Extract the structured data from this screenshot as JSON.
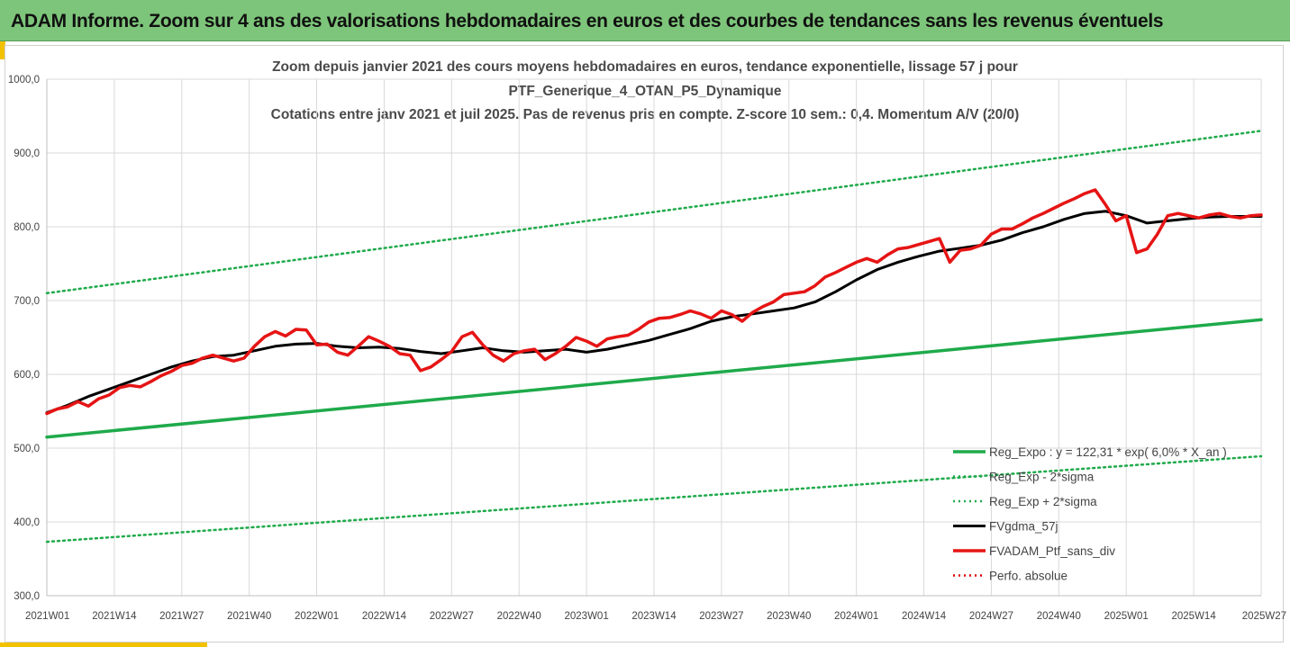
{
  "banner": {
    "title": "ADAM Informe. Zoom sur 4 ans des valorisations hebdomadaires en euros et des courbes de tendances sans les revenus éventuels"
  },
  "colors": {
    "banner_bg": "#7dc57a",
    "regression": "#1faa4b",
    "sigma": "#1faa4b",
    "smoothed": "#000000",
    "absolute": "#e00000",
    "portfolio": "#e61414",
    "accent": "#f2c200"
  },
  "chart_data": {
    "type": "line",
    "title_lines": [
      "Zoom depuis janvier 2021 des cours moyens hebdomadaires  en euros, tendance exponentielle, lissage 57 j pour",
      "PTF_Generique_4_OTAN_P5_Dynamique",
      "Cotations entre janv 2021 et juil 2025. Pas de revenus pris en compte. Z-score 10 sem.: 0,4. Momentum A/V (20/0)"
    ],
    "ylim": [
      300,
      1000
    ],
    "y_ticks": [
      "300,0",
      "400,0",
      "500,0",
      "600,0",
      "700,0",
      "800,0",
      "900,0",
      "1000,0"
    ],
    "x_ticks": [
      "2021W01",
      "2021W14",
      "2021W27",
      "2021W40",
      "2022W01",
      "2022W14",
      "2022W27",
      "2022W40",
      "2023W01",
      "2023W14",
      "2023W27",
      "2023W40",
      "2024W01",
      "2024W14",
      "2024W27",
      "2024W40",
      "2025W01",
      "2025W14",
      "2025W27"
    ],
    "grid": "horizontal and vertical",
    "legend_position": "bottom-right",
    "series": [
      {
        "name": "Reg_Expo : y = 122,31 * exp( 6,0% *  X_an )",
        "style": "solid-green",
        "x": [
          0,
          234
        ],
        "y": [
          515,
          674
        ]
      },
      {
        "name": "Reg_Exp - 2*sigma",
        "style": "dotted-green",
        "x": [
          0,
          234
        ],
        "y": [
          373,
          489
        ]
      },
      {
        "name": "Reg_Exp + 2*sigma",
        "style": "dotted-green",
        "x": [
          0,
          234
        ],
        "y": [
          710,
          930
        ]
      },
      {
        "name": "FVgdma_57j",
        "style": "solid-black",
        "x": [
          0,
          4,
          8,
          12,
          16,
          20,
          24,
          28,
          32,
          36,
          40,
          44,
          48,
          52,
          56,
          60,
          64,
          68,
          72,
          76,
          80,
          84,
          88,
          92,
          96,
          100,
          104,
          108,
          112,
          116,
          120,
          124,
          128,
          132,
          136,
          140,
          144,
          148,
          152,
          156,
          160,
          164,
          168,
          172,
          176,
          180,
          184,
          188,
          192,
          196,
          200,
          204,
          208,
          212,
          216,
          220,
          224,
          228,
          234
        ],
        "y": [
          548,
          558,
          570,
          580,
          590,
          600,
          610,
          618,
          624,
          626,
          632,
          638,
          641,
          642,
          638,
          636,
          637,
          635,
          631,
          628,
          632,
          636,
          632,
          630,
          632,
          634,
          630,
          634,
          640,
          646,
          654,
          662,
          672,
          678,
          682,
          686,
          690,
          698,
          712,
          728,
          742,
          752,
          760,
          767,
          771,
          775,
          782,
          792,
          800,
          810,
          818,
          821,
          815,
          805,
          808,
          811,
          813,
          814,
          814
        ]
      },
      {
        "name": "FVADAM_Ptf_sans_div",
        "style": "thick-red",
        "x": [
          0,
          2,
          4,
          6,
          8,
          10,
          12,
          14,
          16,
          18,
          20,
          22,
          24,
          26,
          28,
          30,
          32,
          34,
          36,
          38,
          40,
          42,
          44,
          46,
          48,
          50,
          52,
          54,
          56,
          58,
          60,
          62,
          64,
          66,
          68,
          70,
          72,
          74,
          76,
          78,
          80,
          82,
          84,
          86,
          88,
          90,
          92,
          94,
          96,
          98,
          100,
          102,
          104,
          106,
          108,
          110,
          112,
          114,
          116,
          118,
          120,
          122,
          124,
          126,
          128,
          130,
          132,
          134,
          136,
          138,
          140,
          142,
          144,
          146,
          148,
          150,
          152,
          154,
          156,
          158,
          160,
          162,
          164,
          166,
          168,
          170,
          172,
          174,
          176,
          178,
          180,
          182,
          184,
          186,
          188,
          190,
          192,
          194,
          196,
          198,
          200,
          202,
          204,
          206,
          208,
          210,
          212,
          214,
          216,
          218,
          220,
          222,
          224,
          226,
          228,
          230,
          232,
          234
        ],
        "y": [
          547,
          553,
          556,
          563,
          557,
          567,
          572,
          582,
          585,
          583,
          590,
          598,
          604,
          612,
          615,
          622,
          626,
          622,
          618,
          622,
          638,
          651,
          658,
          652,
          661,
          660,
          640,
          641,
          630,
          626,
          638,
          651,
          645,
          638,
          628,
          626,
          605,
          610,
          620,
          631,
          651,
          657,
          640,
          626,
          618,
          628,
          632,
          634,
          620,
          628,
          638,
          650,
          645,
          638,
          648,
          651,
          653,
          661,
          671,
          676,
          677,
          681,
          686,
          682,
          676,
          686,
          681,
          672,
          684,
          692,
          698,
          708,
          710,
          712,
          720,
          732,
          738,
          745,
          752,
          757,
          752,
          762,
          770,
          772,
          776,
          780,
          784,
          752,
          768,
          770,
          775,
          790,
          797,
          797,
          804,
          812,
          818,
          825,
          832,
          838,
          845,
          850,
          830,
          808,
          815,
          765,
          770,
          790,
          815,
          818,
          815,
          812,
          816,
          818,
          814,
          812,
          815,
          816
        ]
      },
      {
        "name": "Perfo. absolue",
        "style": "dotted-red",
        "x": [],
        "y": []
      }
    ]
  }
}
